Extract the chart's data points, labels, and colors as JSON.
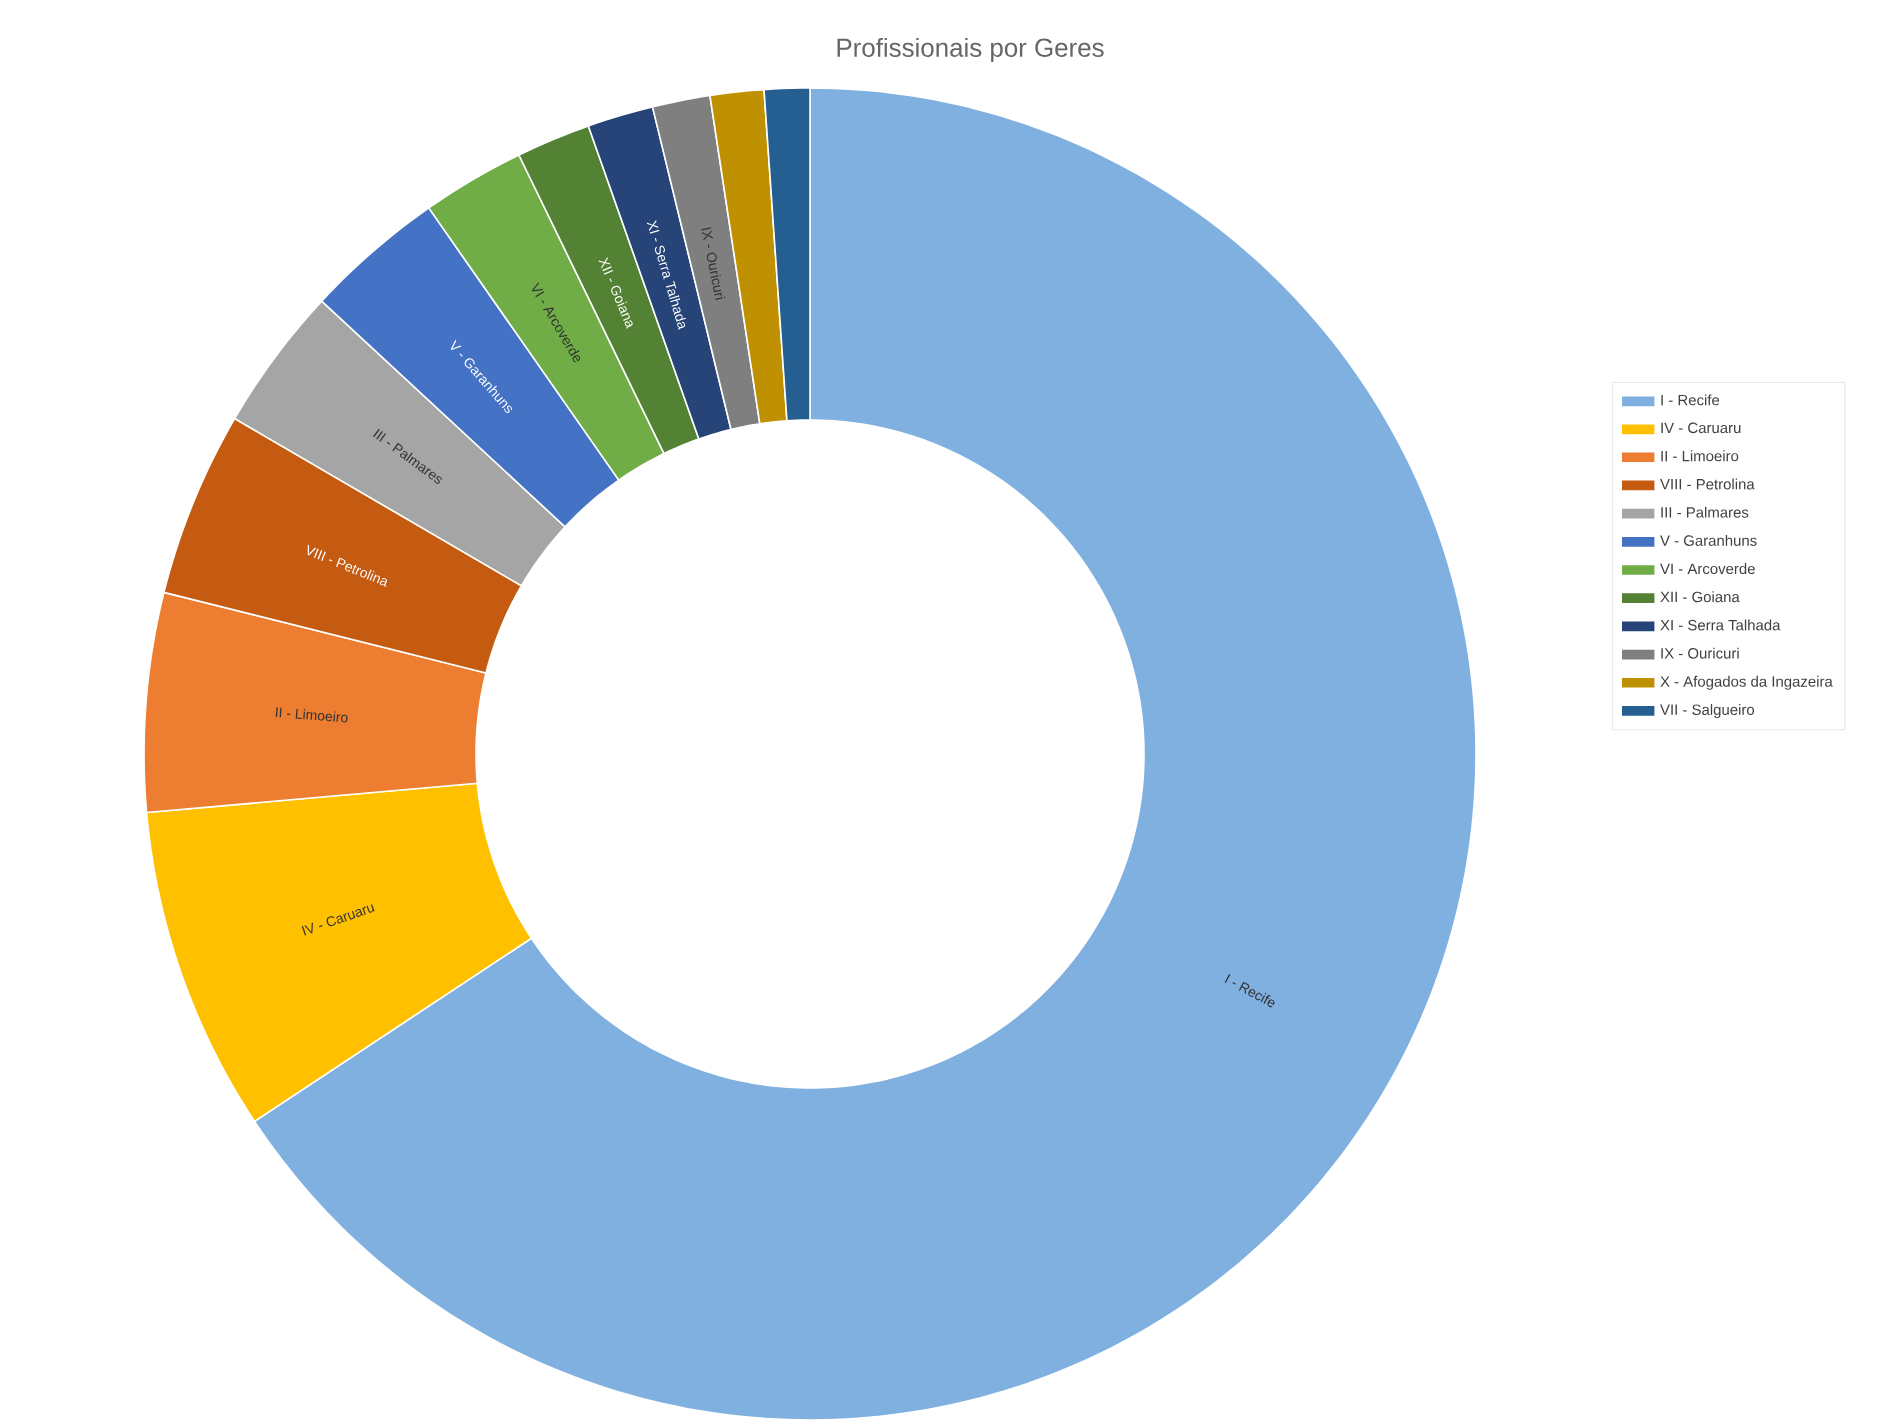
{
  "chart_data": {
    "type": "donut",
    "title": "Profissionais por Geres",
    "categories": [
      "I - Recife",
      "IV - Caruaru",
      "II - Limoeiro",
      "VIII - Petrolina",
      "III - Palmares",
      "V - Garanhuns",
      "VI - Arcoverde",
      "XII - Goiana",
      "XI - Serra Talhada",
      "IX - Ouricuri",
      "X - Afogados da Ingazeira",
      "VII - Salgueiro"
    ],
    "values": [
      65.7,
      7.9,
      5.3,
      4.5,
      3.5,
      3.4,
      2.5,
      1.8,
      1.6,
      1.4,
      1.3,
      1.1
    ],
    "colors": [
      "#7fb0e0",
      "#ffc000",
      "#ed7d31",
      "#c55a11",
      "#a5a5a5",
      "#4472c4",
      "#70ad47",
      "#548235",
      "#264478",
      "#7f7f7f",
      "#bf9000",
      "#255e91"
    ],
    "legend": "right"
  }
}
